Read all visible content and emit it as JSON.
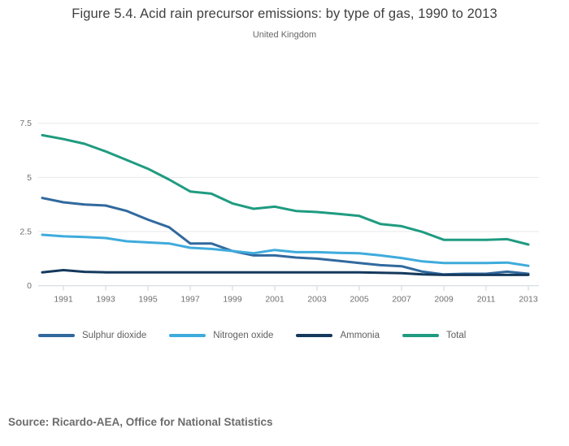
{
  "header": {
    "title": "Figure 5.4. Acid rain precursor emissions: by type of gas, 1990 to 2013",
    "subtitle": "United Kingdom"
  },
  "source": {
    "text": "Source: Ricardo-AEA, Office for National Statistics"
  },
  "colors": {
    "sulphur_dioxide": "#31699e",
    "nitrogen_oxide": "#3fabdc",
    "ammonia": "#14395c",
    "total": "#1f9b80",
    "gridline": "#e7e7e7",
    "axis_line": "#c9d6de",
    "tick_text": "#6f6f6f"
  },
  "chart_data": {
    "type": "line",
    "title": "Figure 5.4. Acid rain precursor emissions: by type of gas, 1990 to 2013",
    "subtitle": "United Kingdom",
    "x": [
      1990,
      1991,
      1992,
      1993,
      1994,
      1995,
      1996,
      1997,
      1998,
      1999,
      2000,
      2001,
      2002,
      2003,
      2004,
      2005,
      2006,
      2007,
      2008,
      2009,
      2010,
      2011,
      2012,
      2013
    ],
    "series": [
      {
        "name": "Sulphur dioxide",
        "color": "#31699e",
        "values": [
          4.05,
          3.85,
          3.75,
          3.7,
          3.45,
          3.05,
          2.7,
          1.95,
          1.95,
          1.6,
          1.4,
          1.4,
          1.3,
          1.25,
          1.15,
          1.05,
          0.95,
          0.9,
          0.65,
          0.52,
          0.55,
          0.55,
          0.65,
          0.55
        ]
      },
      {
        "name": "Nitrogen oxide",
        "color": "#3fabdc",
        "values": [
          2.35,
          2.28,
          2.25,
          2.2,
          2.05,
          2.0,
          1.95,
          1.75,
          1.7,
          1.6,
          1.5,
          1.65,
          1.55,
          1.55,
          1.52,
          1.5,
          1.4,
          1.28,
          1.12,
          1.05,
          1.05,
          1.05,
          1.07,
          0.92
        ]
      },
      {
        "name": "Ammonia",
        "color": "#14395c",
        "values": [
          0.62,
          0.72,
          0.64,
          0.62,
          0.62,
          0.62,
          0.62,
          0.62,
          0.62,
          0.62,
          0.62,
          0.62,
          0.62,
          0.62,
          0.62,
          0.62,
          0.6,
          0.58,
          0.52,
          0.5,
          0.5,
          0.5,
          0.5,
          0.5
        ]
      },
      {
        "name": "Total",
        "color": "#1f9b80",
        "values": [
          6.95,
          6.77,
          6.55,
          6.2,
          5.8,
          5.4,
          4.9,
          4.35,
          4.25,
          3.8,
          3.55,
          3.65,
          3.45,
          3.4,
          3.32,
          3.22,
          2.85,
          2.75,
          2.48,
          2.12,
          2.12,
          2.12,
          2.15,
          1.9
        ]
      }
    ],
    "ylim": [
      0,
      7.5
    ],
    "yticks": [
      {
        "v": 0,
        "label": "0"
      },
      {
        "v": 2.5,
        "label": "2.5"
      },
      {
        "v": 5,
        "label": "5"
      },
      {
        "v": 7.5,
        "label": "7.5"
      }
    ],
    "xticks": [
      {
        "v": 1991,
        "label": "1991"
      },
      {
        "v": 1993,
        "label": "1993"
      },
      {
        "v": 1995,
        "label": "1995"
      },
      {
        "v": 1997,
        "label": "1997"
      },
      {
        "v": 1999,
        "label": "1999"
      },
      {
        "v": 2001,
        "label": "2001"
      },
      {
        "v": 2003,
        "label": "2003"
      },
      {
        "v": 2005,
        "label": "2005"
      },
      {
        "v": 2007,
        "label": "2007"
      },
      {
        "v": 2009,
        "label": "2009"
      },
      {
        "v": 2011,
        "label": "2011"
      },
      {
        "v": 2013,
        "label": "2013"
      }
    ],
    "xlabel": "",
    "ylabel": "",
    "grid": "horizontal",
    "legend_position": "bottom"
  }
}
